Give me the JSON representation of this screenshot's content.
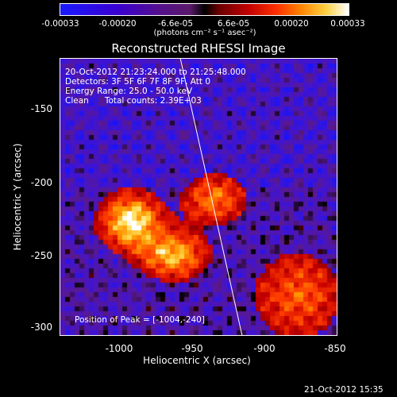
{
  "colorbar": {
    "ticks": [
      "-0.00033",
      "-0.00020",
      "-6.6e-05",
      "6.6e-05",
      "0.00020",
      "0.00033"
    ],
    "units": "(photons cm⁻² s⁻¹ asec⁻²)"
  },
  "title": "Reconstructed RHESSI Image",
  "info": {
    "time": "20-Oct-2012 21:23:24.000 to 21:25:48.000",
    "detectors": "Detectors: 3F 5F 6F 7F 8F 9F, Att 0",
    "energy": "Energy Range: 25.0 - 50.0 keV",
    "method": "Clean      Total counts: 2.39E+03",
    "peak": "Position of Peak = [-1004,-240]"
  },
  "axes": {
    "xlabel": "Heliocentric X (arcsec)",
    "ylabel": "Heliocentric Y (arcsec)",
    "xticks": [
      "-1000",
      "-950",
      "-900",
      "-850"
    ],
    "yticks": [
      "-150",
      "-200",
      "-250",
      "-300"
    ]
  },
  "footer": "21-Oct-2012 15:35"
}
